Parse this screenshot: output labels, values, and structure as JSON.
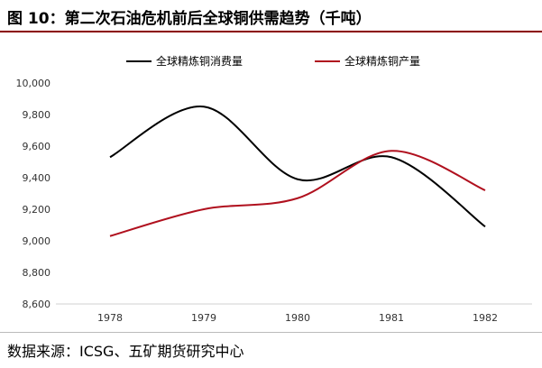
{
  "title": "图 10：第二次石油危机前后全球铜供需趋势（千吨）",
  "source": "数据来源：ICSG、五矿期货研究中心",
  "chart_data": {
    "type": "line",
    "title": "图 10：第二次石油危机前后全球铜供需趋势（千吨）",
    "categories": [
      "1978",
      "1979",
      "1980",
      "1981",
      "1982"
    ],
    "ylim": [
      8600,
      10000
    ],
    "yticks": [
      8600,
      8800,
      9000,
      9200,
      9400,
      9600,
      9800,
      10000
    ],
    "ytick_labels": [
      "8,600",
      "8,800",
      "9,000",
      "9,200",
      "9,400",
      "9,600",
      "9,800",
      "10,000"
    ],
    "grid": false,
    "smooth": true,
    "legend_position": "top",
    "series": [
      {
        "name": "全球精炼铜消费量",
        "color": "#000000",
        "values": [
          9530,
          9850,
          9390,
          9530,
          9090
        ]
      },
      {
        "name": "全球精炼铜产量",
        "color": "#b0101e",
        "values": [
          9030,
          9200,
          9270,
          9570,
          9320
        ]
      }
    ]
  }
}
